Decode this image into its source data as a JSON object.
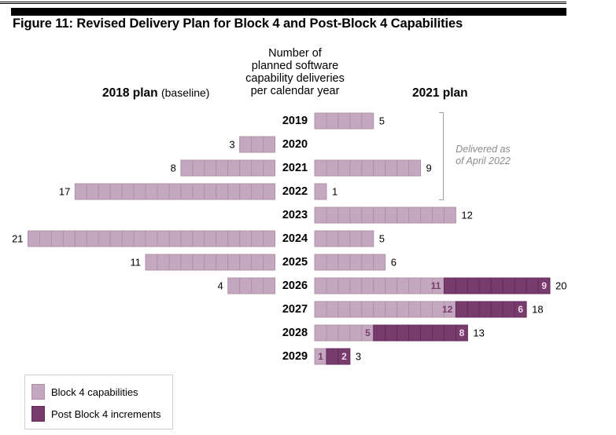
{
  "header": {
    "title": "Figure 11: Revised Delivery Plan for Block 4 and Post-Block 4 Capabilities"
  },
  "chart_data": {
    "type": "bar",
    "orientation": "horizontal-butterfly",
    "title": "Figure 11: Revised Delivery Plan for Block 4 and Post-Block 4 Capabilities",
    "center_label": [
      "Number of",
      "planned software",
      "capability deliveries",
      "per calendar year"
    ],
    "left_panel_title_bold": "2018 plan",
    "left_panel_title_light": "(baseline)",
    "right_panel_title": "2021 plan",
    "categories": [
      "2019",
      "2020",
      "2021",
      "2022",
      "2023",
      "2024",
      "2025",
      "2026",
      "2027",
      "2028",
      "2029"
    ],
    "left_series": {
      "name": "2018 plan (baseline) - Block 4 capabilities",
      "values": [
        0,
        3,
        8,
        17,
        0,
        21,
        11,
        4,
        0,
        0,
        0
      ]
    },
    "right_series": [
      {
        "name": "Block 4 capabilities",
        "values": [
          5,
          0,
          9,
          1,
          12,
          5,
          6,
          11,
          12,
          5,
          1
        ]
      },
      {
        "name": "Post Block 4 increments",
        "values": [
          0,
          0,
          0,
          0,
          0,
          0,
          0,
          9,
          6,
          8,
          2
        ]
      }
    ],
    "right_totals": [
      5,
      0,
      9,
      1,
      12,
      5,
      6,
      20,
      18,
      13,
      3
    ],
    "annotation": {
      "text_line1": "Delivered as",
      "text_line2": "of April 2022",
      "spans_categories": [
        "2019",
        "2020",
        "2021",
        "2022"
      ]
    },
    "legend": {
      "placement": "bottom-left",
      "items": [
        {
          "label": "Block 4 capabilities",
          "color": "#c4a8c0"
        },
        {
          "label": "Post Block 4 increments",
          "color": "#783c6c"
        }
      ]
    },
    "colors": {
      "block4": "#c4a8c0",
      "block4_border": "#b090aa",
      "post_block4": "#783c6c",
      "post_block4_border": "#66285c",
      "block4_inner_label": "#7a3a6e",
      "post_block4_inner_label": "#f0d8ec"
    }
  }
}
